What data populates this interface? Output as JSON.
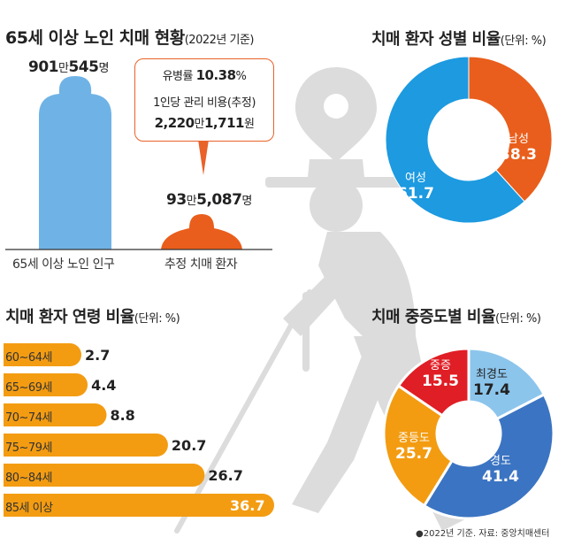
{
  "colors": {
    "blue": "#6fb3e6",
    "orange": "#e95e1c",
    "donut_blue": "#1d9ae0",
    "severity_red": "#e01e25",
    "severity_light_blue": "#8cc5ec",
    "severity_blue": "#3b74c2",
    "severity_orange": "#f39c12",
    "age_bar": "#f39c12",
    "background_illustration": "#dcdcdc"
  },
  "population": {
    "title": "65세 이상 노인 치매 현황",
    "title_note": "(2022년 기준)",
    "elderly": {
      "label": "65세 이상 노인 인구",
      "value_main": "901",
      "value_unit1": "만",
      "value_rest": "545",
      "value_unit2": "명"
    },
    "patients": {
      "label": "추정 치매 환자",
      "value_main": "93",
      "value_unit1": "만",
      "value_rest": "5,087",
      "value_unit2": "명"
    },
    "bubble": {
      "line1_label": "유병률 ",
      "line1_value": "10.38",
      "line1_unit": "%",
      "line2": "1인당 관리 비용(추정)",
      "line3_a": "2,220",
      "line3_unit1": "만",
      "line3_b": "1,711",
      "line3_unit2": "원"
    }
  },
  "chart_data": [
    {
      "type": "bar",
      "title": "65세 이상 노인 치매 현황",
      "subtitle": "(2022년 기준)",
      "categories": [
        "65세 이상 노인 인구",
        "추정 치매 환자"
      ],
      "values": [
        9010545,
        935087
      ]
    },
    {
      "type": "pie",
      "title": "치매 환자 성별 비율",
      "unit_note": "(단위: %)",
      "labels": [
        "남성",
        "여성"
      ],
      "values": [
        38.3,
        61.7
      ]
    },
    {
      "type": "bar",
      "orientation": "horizontal",
      "title": "치매 환자 연령 비율",
      "unit_note": "(단위: %)",
      "categories": [
        "60~64세",
        "65~69세",
        "70~74세",
        "75~79세",
        "80~84세",
        "85세 이상"
      ],
      "values": [
        2.7,
        4.4,
        8.8,
        20.7,
        26.7,
        36.7
      ]
    },
    {
      "type": "pie",
      "title": "치매 중증도별 비율",
      "unit_note": "(단위: %)",
      "labels": [
        "최경도",
        "경도",
        "중등도",
        "중증"
      ],
      "values": [
        17.4,
        41.4,
        25.7,
        15.5
      ]
    }
  ],
  "footer": {
    "note": "●2022년 기준. 자료: 중앙치매센터"
  }
}
